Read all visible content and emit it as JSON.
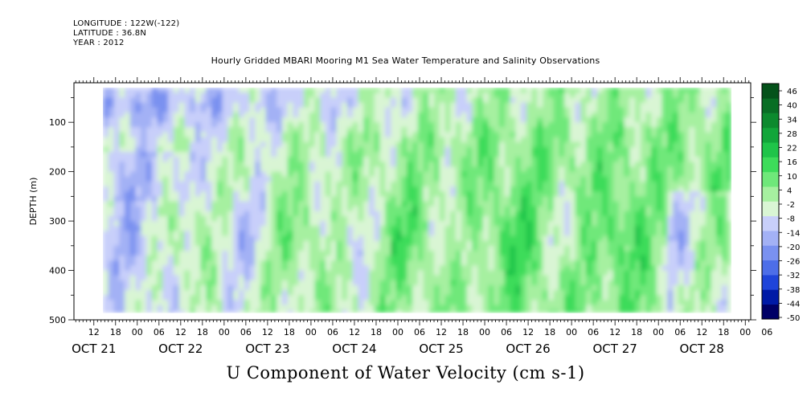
{
  "header": {
    "longitude": "LONGITUDE : 122W(-122)",
    "latitude": "LATITUDE : 36.8N",
    "year": "YEAR : 2012"
  },
  "chart_data": {
    "type": "heatmap",
    "title": "Hourly Gridded MBARI Mooring M1 Sea Water Temperature and Salinity Observations",
    "bottom_title": "U Component of Water Velocity (cm s-1)",
    "ylabel": "DEPTH (m)",
    "y_axis": {
      "range": [
        500,
        20
      ],
      "inverted": true,
      "ticks": [
        "100",
        "200",
        "300",
        "400",
        "500"
      ],
      "tick_values": [
        100,
        200,
        300,
        400,
        500
      ]
    },
    "x_axis": {
      "hour_labels": [
        "12",
        "18",
        "00",
        "06",
        "12",
        "18",
        "00",
        "06",
        "12",
        "18",
        "00",
        "06",
        "12",
        "18",
        "00",
        "06",
        "12",
        "18",
        "00",
        "06",
        "12",
        "18",
        "00",
        "06",
        "12",
        "18",
        "00",
        "06",
        "12",
        "18",
        "00",
        "06"
      ],
      "day_labels": [
        "OCT 21",
        "OCT 22",
        "OCT 23",
        "OCT 24",
        "OCT 25",
        "OCT 26",
        "OCT 27",
        "OCT 28"
      ],
      "range_hours_from_oct21_00": [
        6.5,
        193.5
      ]
    },
    "colorbar": {
      "labels": [
        "46",
        "40",
        "34",
        "28",
        "22",
        "16",
        "10",
        "4",
        "-2",
        "-8",
        "-14",
        "-20",
        "-26",
        "-32",
        "-38",
        "-44",
        "-50"
      ],
      "range": [
        -50,
        52
      ],
      "colors_low_to_high": [
        "#000066",
        "#001aa6",
        "#1f44d9",
        "#4d6ee8",
        "#7a91f0",
        "#a3b1f5",
        "#c8cffa",
        "#d9f5d4",
        "#a6f0a0",
        "#6fe87a",
        "#3ddc5a",
        "#1fc449",
        "#12a63a",
        "#0c8a2e",
        "#086e24",
        "#04521a"
      ]
    },
    "data_depth_range": [
      30,
      485
    ],
    "data_time_range_hours": [
      14.5,
      188
    ]
  }
}
